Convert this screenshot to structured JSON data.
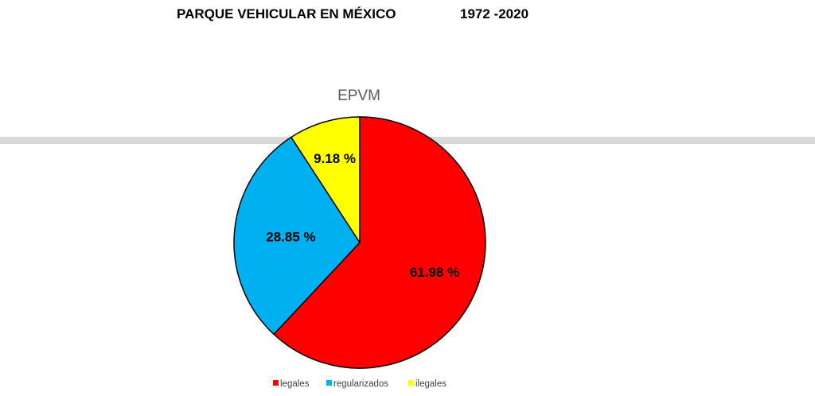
{
  "header": {
    "title": "PARQUE VEHICULAR EN MÉXICO",
    "period": "1972 -2020"
  },
  "chart_data": {
    "type": "pie",
    "title": "EPVM",
    "categories": [
      "legales",
      "regularizados",
      "ilegales"
    ],
    "values": [
      61.98,
      28.85,
      9.18
    ],
    "labels": [
      "61.98 %",
      "28.85 %",
      "9.18 %"
    ],
    "colors": [
      "#ff0000",
      "#00b0f0",
      "#ffff00"
    ],
    "legend_position": "bottom",
    "start_angle": "12 o'clock",
    "direction": "clockwise"
  }
}
